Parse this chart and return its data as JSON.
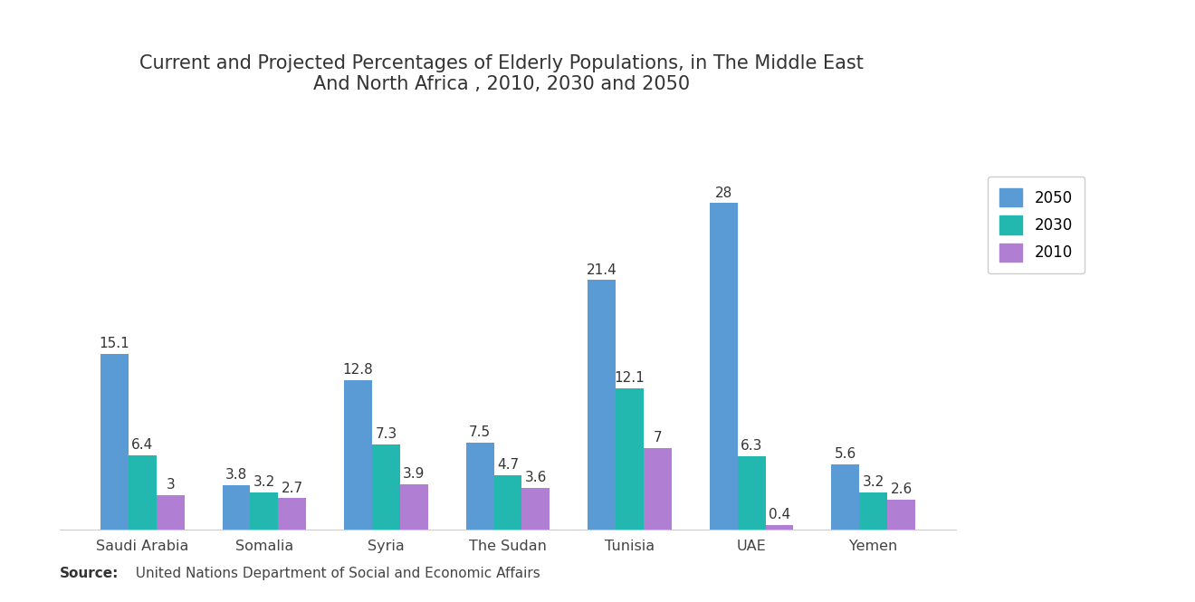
{
  "title": "Current and Projected Percentages of Elderly Populations, in The Middle East\nAnd North Africa , 2010, 2030 and 2050",
  "categories": [
    "Saudi Arabia",
    "Somalia",
    "Syria",
    "The Sudan",
    "Tunisia",
    "UAE",
    "Yemen"
  ],
  "series": {
    "2050": [
      15.1,
      3.8,
      12.8,
      7.5,
      21.4,
      28.0,
      5.6
    ],
    "2030": [
      6.4,
      3.2,
      7.3,
      4.7,
      12.1,
      6.3,
      3.2
    ],
    "2010": [
      3.0,
      2.7,
      3.9,
      3.6,
      7.0,
      0.4,
      2.6
    ]
  },
  "labels": {
    "2050": [
      "15.1",
      "3.8",
      "12.8",
      "7.5",
      "21.4",
      "28",
      "5.6"
    ],
    "2030": [
      "6.4",
      "3.2",
      "7.3",
      "4.7",
      "12.1",
      "6.3",
      "3.2"
    ],
    "2010": [
      "3",
      "2.7",
      "3.9",
      "3.6",
      "7",
      "0.4",
      "2.6"
    ]
  },
  "colors": {
    "2050": "#5B9BD5",
    "2030": "#22B8B0",
    "2010": "#B07FD4"
  },
  "source_bold": "Source:",
  "source_rest": "  United Nations Department of Social and Economic Affairs",
  "background_color": "#FFFFFF",
  "bar_width": 0.23,
  "ylim": [
    0,
    32
  ],
  "title_fontsize": 15,
  "label_fontsize": 11,
  "tick_fontsize": 11.5,
  "source_fontsize": 11,
  "legend_fontsize": 12
}
